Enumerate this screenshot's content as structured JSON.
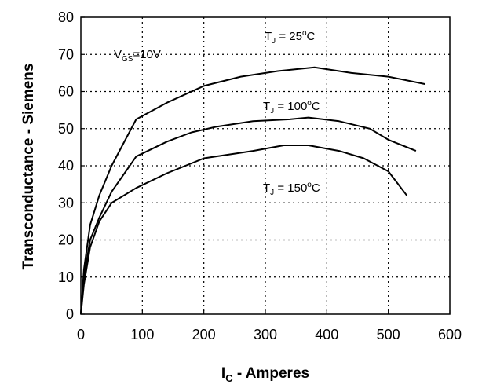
{
  "chart_data": {
    "type": "line",
    "xlabel": {
      "main": "I",
      "sub": "C",
      "rest": " - Amperes"
    },
    "ylabel": "Transconductance - Siemens",
    "xlim": [
      0,
      600
    ],
    "ylim": [
      0,
      80
    ],
    "xticks": [
      0,
      100,
      200,
      300,
      400,
      500,
      600
    ],
    "yticks": [
      0,
      10,
      20,
      30,
      40,
      50,
      60,
      70,
      80
    ],
    "grid": true,
    "annotations": {
      "vgs": {
        "main": "V",
        "sub": "GS",
        "rest": "=10V"
      },
      "t25": {
        "main": "T",
        "sub": "J",
        "mid": " = 25",
        "sup": "o",
        "rest": "C"
      },
      "t100": {
        "main": "T",
        "sub": "J",
        "mid": " = 100",
        "sup": "o",
        "rest": "C"
      },
      "t150": {
        "main": "T",
        "sub": "J",
        "mid": " = 150",
        "sup": "o",
        "rest": "C"
      }
    },
    "series": [
      {
        "x": [
          0,
          5,
          15,
          30,
          50,
          90,
          140,
          200,
          260,
          320,
          380,
          440,
          500,
          560
        ],
        "y": [
          0,
          12,
          24,
          32,
          40,
          52.5,
          57,
          61.5,
          64,
          65.5,
          66.5,
          65,
          64,
          62
        ]
      },
      {
        "x": [
          0,
          5,
          15,
          30,
          50,
          90,
          140,
          180,
          220,
          280,
          340,
          370,
          420,
          470,
          500,
          545
        ],
        "y": [
          0,
          10,
          20,
          26,
          33,
          42.5,
          46.5,
          49,
          50.5,
          52,
          52.5,
          53,
          52,
          50,
          47,
          44
        ]
      },
      {
        "x": [
          0,
          5,
          15,
          30,
          50,
          90,
          140,
          200,
          280,
          330,
          370,
          420,
          460,
          500,
          530
        ],
        "y": [
          0,
          8,
          18,
          25,
          30,
          34,
          38,
          42,
          44,
          45.5,
          45.5,
          44,
          42,
          38.5,
          32
        ]
      }
    ]
  }
}
